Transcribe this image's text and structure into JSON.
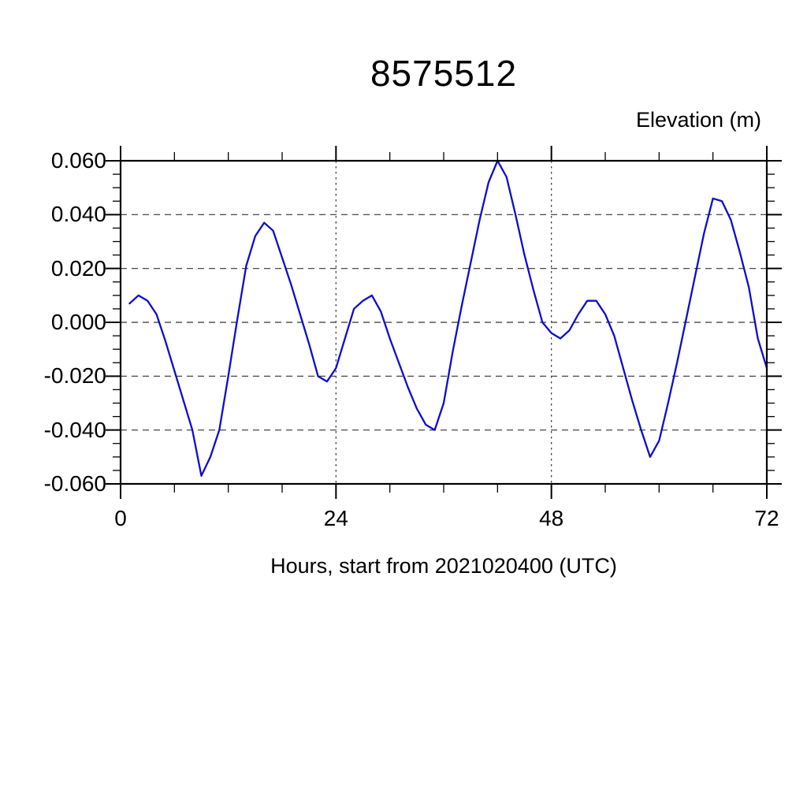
{
  "title": "8575512",
  "axis_caption_right": "Elevation (m)",
  "x_axis_label": "Hours, start from 2021020400 (UTC)",
  "colors": {
    "line": "#0d0dcc",
    "frame": "#000000",
    "grid": "#333333",
    "background": "#ffffff",
    "text": "#000000"
  },
  "y_tick_labels": [
    "0.060",
    "0.040",
    "0.020",
    "0.000",
    "-0.020",
    "-0.040",
    "-0.060"
  ],
  "x_tick_labels": [
    "0",
    "24",
    "48",
    "72"
  ],
  "chart_data": {
    "type": "line",
    "title": "8575512",
    "xlabel": "Hours, start from 2021020400 (UTC)",
    "ylabel": "Elevation (m)",
    "xlim": [
      0,
      72
    ],
    "ylim": [
      -0.06,
      0.06
    ],
    "x_major_ticks": [
      0,
      24,
      48,
      72
    ],
    "x_minor_tick_interval": 6,
    "y_major_ticks": [
      0.06,
      0.04,
      0.02,
      0.0,
      -0.02,
      -0.04,
      -0.06
    ],
    "y_minor_tick_interval": 0.005,
    "grid": "dashed lines at major ticks, ticks outward on all four sides",
    "legend_position": "none",
    "series": [
      {
        "name": "elevation",
        "x": [
          1,
          2,
          3,
          4,
          5,
          6,
          7,
          8,
          9,
          10,
          11,
          12,
          13,
          14,
          15,
          16,
          17,
          18,
          19,
          20,
          21,
          22,
          23,
          24,
          25,
          26,
          27,
          28,
          29,
          30,
          31,
          32,
          33,
          34,
          35,
          36,
          37,
          38,
          39,
          40,
          41,
          42,
          43,
          44,
          45,
          46,
          47,
          48,
          49,
          50,
          51,
          52,
          53,
          54,
          55,
          56,
          57,
          58,
          59,
          60,
          61,
          62,
          63,
          64,
          65,
          66,
          67,
          68,
          69,
          70,
          71,
          72
        ],
        "y": [
          0.007,
          0.01,
          0.008,
          0.003,
          -0.007,
          -0.018,
          -0.029,
          -0.04,
          -0.057,
          -0.05,
          -0.04,
          -0.02,
          0.001,
          0.021,
          0.032,
          0.037,
          0.034,
          0.024,
          0.014,
          0.003,
          -0.008,
          -0.02,
          -0.022,
          -0.017,
          -0.006,
          0.005,
          0.008,
          0.01,
          0.004,
          -0.006,
          -0.015,
          -0.024,
          -0.032,
          -0.038,
          -0.04,
          -0.03,
          -0.011,
          0.006,
          0.022,
          0.038,
          0.052,
          0.06,
          0.054,
          0.04,
          0.025,
          0.012,
          0.0,
          -0.004,
          -0.006,
          -0.003,
          0.003,
          0.008,
          0.008,
          0.003,
          -0.005,
          -0.017,
          -0.029,
          -0.04,
          -0.05,
          -0.044,
          -0.03,
          -0.015,
          0.001,
          0.017,
          0.033,
          0.046,
          0.045,
          0.038,
          0.026,
          0.013,
          -0.006,
          -0.017
        ]
      }
    ]
  }
}
